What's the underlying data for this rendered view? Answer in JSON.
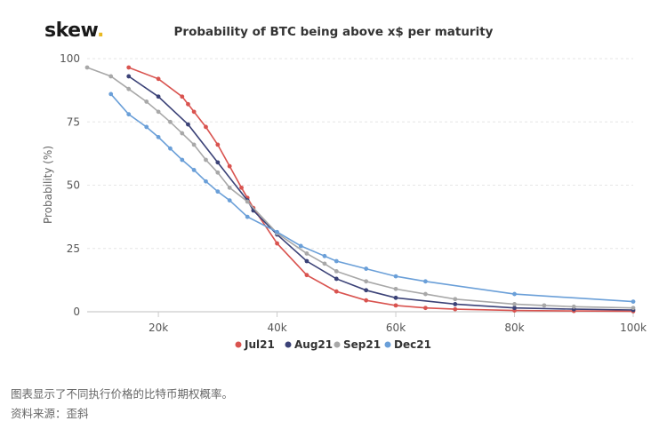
{
  "brand": {
    "name": "skew",
    "dot": "."
  },
  "caption": {
    "line1": "图表显示了不同执行价格的比特币期权概率。",
    "line2": "资料来源：歪斜"
  },
  "chart_data": {
    "type": "line",
    "title": "Probability of BTC being above x$ per maturity",
    "ylabel": "Probability (%)",
    "xlabel": "",
    "xlim": [
      8000,
      100000
    ],
    "ylim": [
      0,
      100
    ],
    "x_ticks": [
      {
        "v": 20000,
        "label": "20k"
      },
      {
        "v": 40000,
        "label": "40k"
      },
      {
        "v": 60000,
        "label": "60k"
      },
      {
        "v": 80000,
        "label": "80k"
      },
      {
        "v": 100000,
        "label": "100k"
      }
    ],
    "y_ticks": [
      {
        "v": 0,
        "label": "0"
      },
      {
        "v": 25,
        "label": "25"
      },
      {
        "v": 50,
        "label": "50"
      },
      {
        "v": 75,
        "label": "75"
      },
      {
        "v": 100,
        "label": "100"
      }
    ],
    "grid": true,
    "legend_position": "bottom",
    "series": [
      {
        "name": "Jul21",
        "color": "#d9534f",
        "x": [
          15000,
          20000,
          24000,
          25000,
          26000,
          28000,
          30000,
          32000,
          34000,
          35000,
          36000,
          40000,
          45000,
          50000,
          55000,
          60000,
          65000,
          70000,
          80000,
          90000,
          100000
        ],
        "y": [
          96.5,
          92,
          85,
          82,
          79,
          73,
          66,
          57.5,
          49,
          45,
          41,
          27,
          14.5,
          8,
          4.5,
          2.5,
          1.5,
          1,
          0.5,
          0.3,
          0.2
        ]
      },
      {
        "name": "Aug21",
        "color": "#3b4277",
        "x": [
          15000,
          20000,
          25000,
          30000,
          35000,
          36000,
          40000,
          45000,
          50000,
          55000,
          60000,
          70000,
          80000,
          90000,
          100000
        ],
        "y": [
          93,
          85,
          74,
          59,
          44,
          40,
          30.5,
          20,
          13,
          8.5,
          5.5,
          3,
          1.5,
          1,
          0.7
        ]
      },
      {
        "name": "Sep21",
        "color": "#a8a8a8",
        "x": [
          8000,
          12000,
          15000,
          18000,
          20000,
          22000,
          24000,
          26000,
          28000,
          30000,
          32000,
          35000,
          40000,
          45000,
          48000,
          50000,
          55000,
          60000,
          65000,
          70000,
          80000,
          85000,
          90000,
          100000
        ],
        "y": [
          96.5,
          93,
          88,
          83,
          79,
          75,
          70.5,
          66,
          60,
          55,
          49,
          43.5,
          31,
          23,
          19,
          16,
          12,
          9,
          7,
          5,
          3,
          2.5,
          2,
          1.5
        ]
      },
      {
        "name": "Dec21",
        "color": "#6a9fd8",
        "x": [
          12000,
          15000,
          18000,
          20000,
          22000,
          24000,
          26000,
          28000,
          30000,
          32000,
          35000,
          40000,
          44000,
          48000,
          50000,
          55000,
          60000,
          65000,
          80000,
          100000
        ],
        "y": [
          86,
          78,
          73,
          69,
          64.5,
          60,
          56,
          51.5,
          47.5,
          44,
          37.5,
          31.5,
          26,
          22,
          20,
          17,
          14,
          12,
          7,
          4
        ]
      }
    ]
  }
}
